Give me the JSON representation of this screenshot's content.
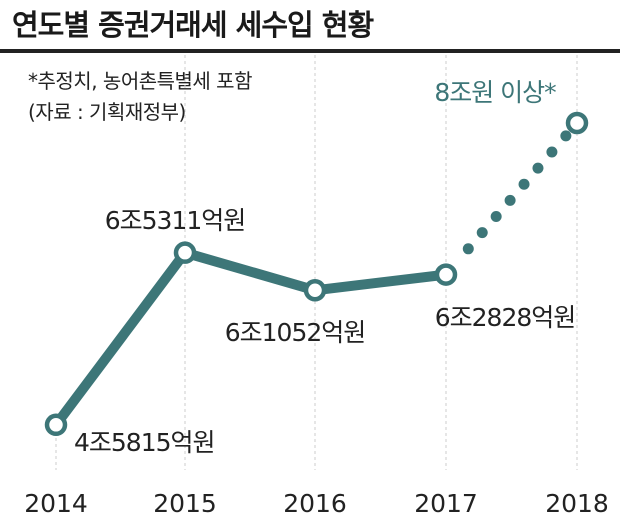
{
  "header": {
    "title": "연도별 증권거래세 세수입 현황",
    "note_estimate": "*추정치, 농어촌특별세 포함",
    "note_source": "(자료 : 기획재정부)"
  },
  "colors": {
    "line": "#3d7678",
    "projection": "#3d7678",
    "label_highlight": "#3d7678",
    "text": "#222222",
    "grid": "#cccccc"
  },
  "chart_data": {
    "type": "line",
    "title": "연도별 증권거래세 세수입 현황",
    "xlabel": "",
    "ylabel": "",
    "categories": [
      "2014",
      "2015",
      "2016",
      "2017",
      "2018"
    ],
    "series": [
      {
        "values": [
          4.5815,
          6.5311,
          6.1052,
          6.2828,
          8.0
        ],
        "labels": [
          "4조5815억원",
          "6조5311억원",
          "6조1052억원",
          "6조2828억원",
          "8조원 이상*"
        ],
        "estimated": [
          false,
          false,
          false,
          false,
          true
        ]
      }
    ],
    "y_unit": "조원",
    "ylim": [
      4.5,
      8.0
    ],
    "grid": "vertical dashed lines at each year",
    "legend": "none"
  }
}
